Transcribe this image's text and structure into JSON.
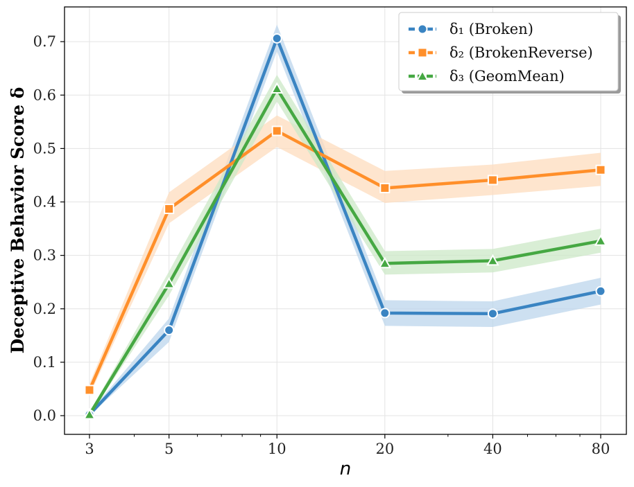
{
  "chart_data": {
    "type": "line",
    "title": "",
    "xlabel": "n",
    "ylabel": "Deceptive Behavior Score δ",
    "x_scale": "log",
    "x": [
      3,
      5,
      10,
      20,
      40,
      80
    ],
    "x_tick_labels": [
      "3",
      "5",
      "10",
      "20",
      "40",
      "80"
    ],
    "ylim": [
      -0.035,
      0.765
    ],
    "y_ticks": [
      0.0,
      0.1,
      0.2,
      0.3,
      0.4,
      0.5,
      0.6,
      0.7
    ],
    "y_tick_labels": [
      "0.0",
      "0.1",
      "0.2",
      "0.3",
      "0.4",
      "0.5",
      "0.6",
      "0.7"
    ],
    "grid": true,
    "legend_position": "top-right",
    "series": [
      {
        "name": "δ₁ (Broken)",
        "color": "#3a84c2",
        "band_color": "#bcd6ec",
        "marker": "circle",
        "values": [
          0.002,
          0.16,
          0.706,
          0.192,
          0.191,
          0.233
        ],
        "lower": [
          0.0,
          0.138,
          0.682,
          0.168,
          0.166,
          0.208
        ],
        "upper": [
          0.006,
          0.182,
          0.732,
          0.216,
          0.214,
          0.258
        ]
      },
      {
        "name": "δ₂ (BrokenReverse)",
        "color": "#ff8f2a",
        "band_color": "#fddcbe",
        "marker": "square",
        "values": [
          0.048,
          0.387,
          0.533,
          0.426,
          0.441,
          0.46
        ],
        "lower": [
          0.038,
          0.36,
          0.503,
          0.398,
          0.413,
          0.43
        ],
        "upper": [
          0.06,
          0.418,
          0.562,
          0.458,
          0.47,
          0.492
        ]
      },
      {
        "name": "δ₃ (GeomMean)",
        "color": "#46a843",
        "band_color": "#cce8c7",
        "marker": "triangle",
        "values": [
          0.002,
          0.247,
          0.612,
          0.285,
          0.29,
          0.327
        ],
        "lower": [
          0.0,
          0.225,
          0.588,
          0.264,
          0.268,
          0.305
        ],
        "upper": [
          0.006,
          0.27,
          0.638,
          0.308,
          0.312,
          0.35
        ]
      }
    ]
  }
}
